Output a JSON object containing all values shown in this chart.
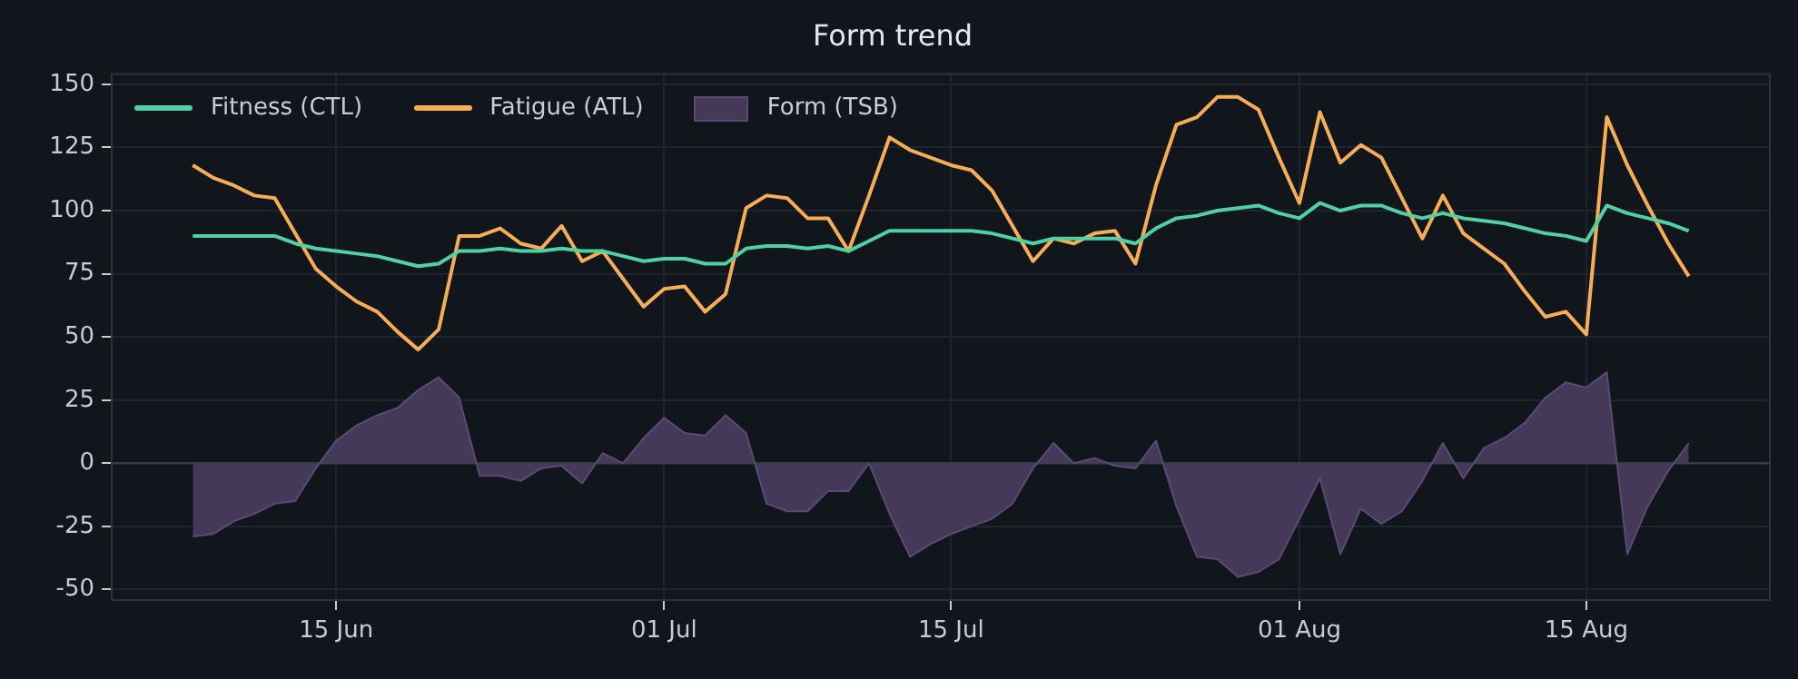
{
  "chart_data": {
    "type": "line",
    "title": "Form trend",
    "x": [
      "--06-08",
      "--06-09",
      "--06-10",
      "--06-11",
      "--06-12",
      "--06-13",
      "--06-14",
      "--06-15",
      "--06-16",
      "--06-17",
      "--06-18",
      "--06-19",
      "--06-20",
      "--06-21",
      "--06-22",
      "--06-23",
      "--06-24",
      "--06-25",
      "--06-26",
      "--06-27",
      "--06-28",
      "--06-29",
      "--06-30",
      "--07-01",
      "--07-02",
      "--07-03",
      "--07-04",
      "--07-05",
      "--07-06",
      "--07-07",
      "--07-08",
      "--07-09",
      "--07-10",
      "--07-11",
      "--07-12",
      "--07-13",
      "--07-14",
      "--07-15",
      "--07-16",
      "--07-17",
      "--07-18",
      "--07-19",
      "--07-20",
      "--07-21",
      "--07-22",
      "--07-23",
      "--07-24",
      "--07-25",
      "--07-26",
      "--07-27",
      "--07-28",
      "--07-29",
      "--07-30",
      "--07-31",
      "--08-01",
      "--08-02",
      "--08-03",
      "--08-04",
      "--08-05",
      "--08-06",
      "--08-07",
      "--08-08",
      "--08-09",
      "--08-10",
      "--08-11",
      "--08-12",
      "--08-13",
      "--08-14",
      "--08-15",
      "--08-16",
      "--08-17",
      "--08-18",
      "--08-19",
      "--08-20"
    ],
    "series": [
      {
        "name": "Fitness (CTL)",
        "color": "#4fd1a5",
        "values": [
          90,
          90,
          90,
          90,
          90,
          87,
          85,
          84,
          83,
          82,
          80,
          78,
          79,
          84,
          84,
          85,
          84,
          84,
          85,
          84,
          84,
          82,
          80,
          81,
          81,
          79,
          79,
          85,
          86,
          86,
          85,
          86,
          84,
          88,
          92,
          92,
          92,
          92,
          92,
          91,
          89,
          87,
          89,
          89,
          89,
          89,
          87,
          93,
          97,
          98,
          100,
          101,
          102,
          99,
          97,
          103,
          100,
          102,
          102,
          99,
          97,
          99,
          97,
          96,
          95,
          93,
          91,
          90,
          88,
          102,
          99,
          97,
          95,
          92
        ]
      },
      {
        "name": "Fatigue (ATL)",
        "color": "#f6ad55",
        "values": [
          118,
          113,
          110,
          106,
          105,
          91,
          77,
          70,
          64,
          60,
          52,
          45,
          53,
          90,
          90,
          93,
          87,
          85,
          94,
          80,
          84,
          73,
          62,
          69,
          70,
          60,
          67,
          101,
          106,
          105,
          97,
          97,
          84,
          106,
          129,
          124,
          121,
          118,
          116,
          108,
          94,
          80,
          89,
          87,
          91,
          92,
          79,
          110,
          134,
          137,
          145,
          145,
          140,
          121,
          103,
          139,
          119,
          126,
          121,
          105,
          89,
          106,
          91,
          85,
          79,
          68,
          58,
          60,
          51,
          137,
          118,
          102,
          87,
          74
        ]
      },
      {
        "name": "Form (TSB)",
        "type": "area",
        "color": "#45395a",
        "values": [
          -29,
          -28,
          -23,
          -20,
          -16,
          -15,
          -2,
          9,
          15,
          19,
          22,
          29,
          34,
          26,
          -5,
          -5,
          -7,
          -2,
          -1,
          -8,
          4,
          0,
          10,
          18,
          12,
          11,
          19,
          12,
          -16,
          -19,
          -19,
          -11,
          -11,
          0,
          -20,
          -37,
          -32,
          -28,
          -25,
          -22,
          -16,
          -2,
          8,
          0,
          2,
          -1,
          -2,
          9,
          -17,
          -37,
          -38,
          -45,
          -43,
          -38,
          -22,
          -6,
          -36,
          -18,
          -24,
          -19,
          -7,
          8,
          -6,
          6,
          10,
          16,
          26,
          32,
          30,
          36,
          -36,
          -17,
          -3,
          8
        ]
      }
    ],
    "xlim": [
      "--06-04",
      "--08-24"
    ],
    "xticks": [
      {
        "value": "--06-15",
        "label": "15 Jun"
      },
      {
        "value": "--07-01",
        "label": "01 Jul"
      },
      {
        "value": "--07-15",
        "label": "15 Jul"
      },
      {
        "value": "--08-01",
        "label": "01 Aug"
      },
      {
        "value": "--08-15",
        "label": "15 Aug"
      }
    ],
    "ylim": [
      -54.5,
      154.5
    ],
    "yticks": [
      -50,
      -25,
      0,
      25,
      50,
      75,
      100,
      125,
      150
    ],
    "ref_lines": [
      {
        "axis": "y",
        "value": 0,
        "color": "#3b404b"
      }
    ],
    "grid": true,
    "legend": "top left",
    "marker": "none"
  }
}
